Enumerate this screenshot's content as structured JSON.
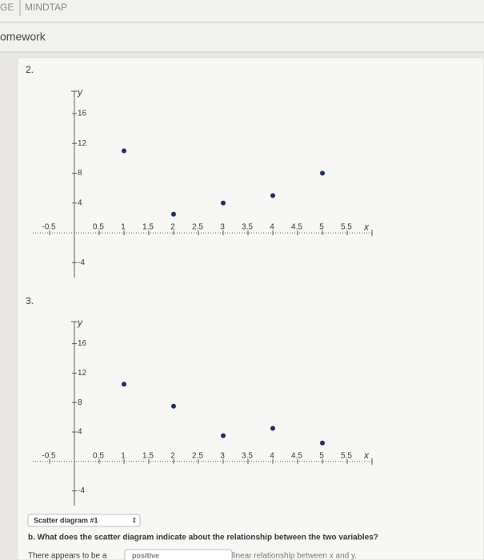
{
  "header": {
    "brand_left": "GE",
    "brand": "MINDTAP",
    "section": "omework"
  },
  "questions": [
    {
      "number": "2."
    },
    {
      "number": "3."
    }
  ],
  "chart_data": [
    {
      "type": "scatter",
      "x_label": "x",
      "y_label": "y",
      "color": "#1c2a5a",
      "x": [
        1,
        2,
        3,
        4,
        5
      ],
      "values": [
        11,
        2.5,
        4,
        5,
        8
      ],
      "xlim": [
        -1,
        6
      ],
      "ylim": [
        -6,
        19
      ],
      "xticks": [
        -0.5,
        0.5,
        1,
        1.5,
        2,
        2.5,
        3,
        3.5,
        4,
        4.5,
        5,
        5.5
      ],
      "yticks": [
        -4,
        4,
        8,
        12,
        16
      ]
    },
    {
      "type": "scatter",
      "x_label": "x",
      "y_label": "y",
      "color": "#1c2a5a",
      "x": [
        1,
        2,
        3,
        4,
        5
      ],
      "values": [
        10.5,
        7.5,
        3.5,
        4.5,
        2.5
      ],
      "xlim": [
        -1,
        6
      ],
      "ylim": [
        -6,
        19
      ],
      "xticks": [
        -0.5,
        0.5,
        1,
        1.5,
        2,
        2.5,
        3,
        3.5,
        4,
        4.5,
        5,
        5.5
      ],
      "yticks": [
        -4,
        4,
        8,
        12,
        16
      ]
    }
  ],
  "answer": {
    "dropdown": "Scatter diagram #1",
    "question": "b. What does the scatter diagram indicate about the relationship between the two variables?",
    "sentence_start": "There appears to be a",
    "choice": "positive",
    "sentence_end": "linear relationship between x and y."
  }
}
